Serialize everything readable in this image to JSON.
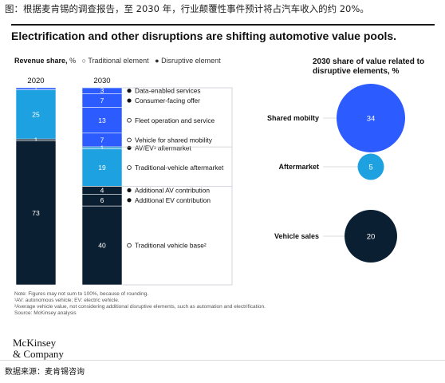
{
  "caption": "图：根据麦肯锡的调查报告，至 2030 年，行业颠覆性事件预计将占汽车收入的约 20%。",
  "headline": "Electrification and other disruptions are shifting automotive value pools.",
  "legend": {
    "label": "Revenue share,",
    "unit": "%",
    "traditional": "Traditional element",
    "disruptive": "Disruptive element"
  },
  "right_title": "2030 share of value related to disruptive elements, %",
  "colors": {
    "dark": "#0b1f33",
    "light_blue": "#1da1e0",
    "royal_blue": "#2c5cff",
    "white": "#ffffff",
    "outline": "#c7ccd2"
  },
  "chart_data": {
    "type": "bar",
    "stacked": true,
    "series_name": "Revenue share, %",
    "bars": [
      {
        "label": "2020",
        "segments": [
          {
            "value": 1,
            "color": "#2c5cff"
          },
          {
            "value": 25,
            "color": "#1da1e0"
          },
          {
            "value": 1,
            "color": "#0b1f33"
          },
          {
            "value": 73,
            "color": "#0b1f33"
          }
        ]
      },
      {
        "label": "2030",
        "segments": [
          {
            "value": 3,
            "color": "#2c5cff",
            "name": "Data-enabled services",
            "kind": "disruptive"
          },
          {
            "value": 7,
            "color": "#2c5cff",
            "name": "Consumer-facing offer",
            "kind": "disruptive"
          },
          {
            "value": 13,
            "color": "#2c5cff",
            "name": "Fleet operation and service",
            "kind": "traditional"
          },
          {
            "value": 7,
            "color": "#2c5cff",
            "name": "Vehicle for shared mobility",
            "kind": "traditional"
          },
          {
            "value": 1,
            "color": "#1da1e0",
            "name": "AV/EV¹ aftermarket",
            "kind": "disruptive"
          },
          {
            "value": 19,
            "color": "#1da1e0",
            "name": "Traditional-vehicle aftermarket",
            "kind": "traditional"
          },
          {
            "value": 4,
            "color": "#0b1f33",
            "name": "Additional AV contribution",
            "kind": "disruptive"
          },
          {
            "value": 6,
            "color": "#0b1f33",
            "name": "Additional EV contribution",
            "kind": "disruptive"
          },
          {
            "value": 40,
            "color": "#0b1f33",
            "name": "Traditional vehicle base²",
            "kind": "traditional"
          }
        ]
      }
    ],
    "bubbles": [
      {
        "label": "Shared mobilty",
        "value": 34,
        "color": "#2c5cff"
      },
      {
        "label": "Aftermarket",
        "value": 5,
        "color": "#1da1e0"
      },
      {
        "label": "Vehicle sales",
        "value": 20,
        "color": "#0b1f33"
      }
    ]
  },
  "notes": [
    "Note: Figures may not sum to 100%, because of rounding.",
    "¹AV: autonomous vehicle; EV: electric vehicle.",
    "²Average vehicle value, not considering additional disruptive elements, such as automation and electrification.",
    "Source: McKinsey analysis"
  ],
  "logo": [
    "McKinsey",
    "& Company"
  ],
  "source": "数据来源：麦肯锡咨询"
}
